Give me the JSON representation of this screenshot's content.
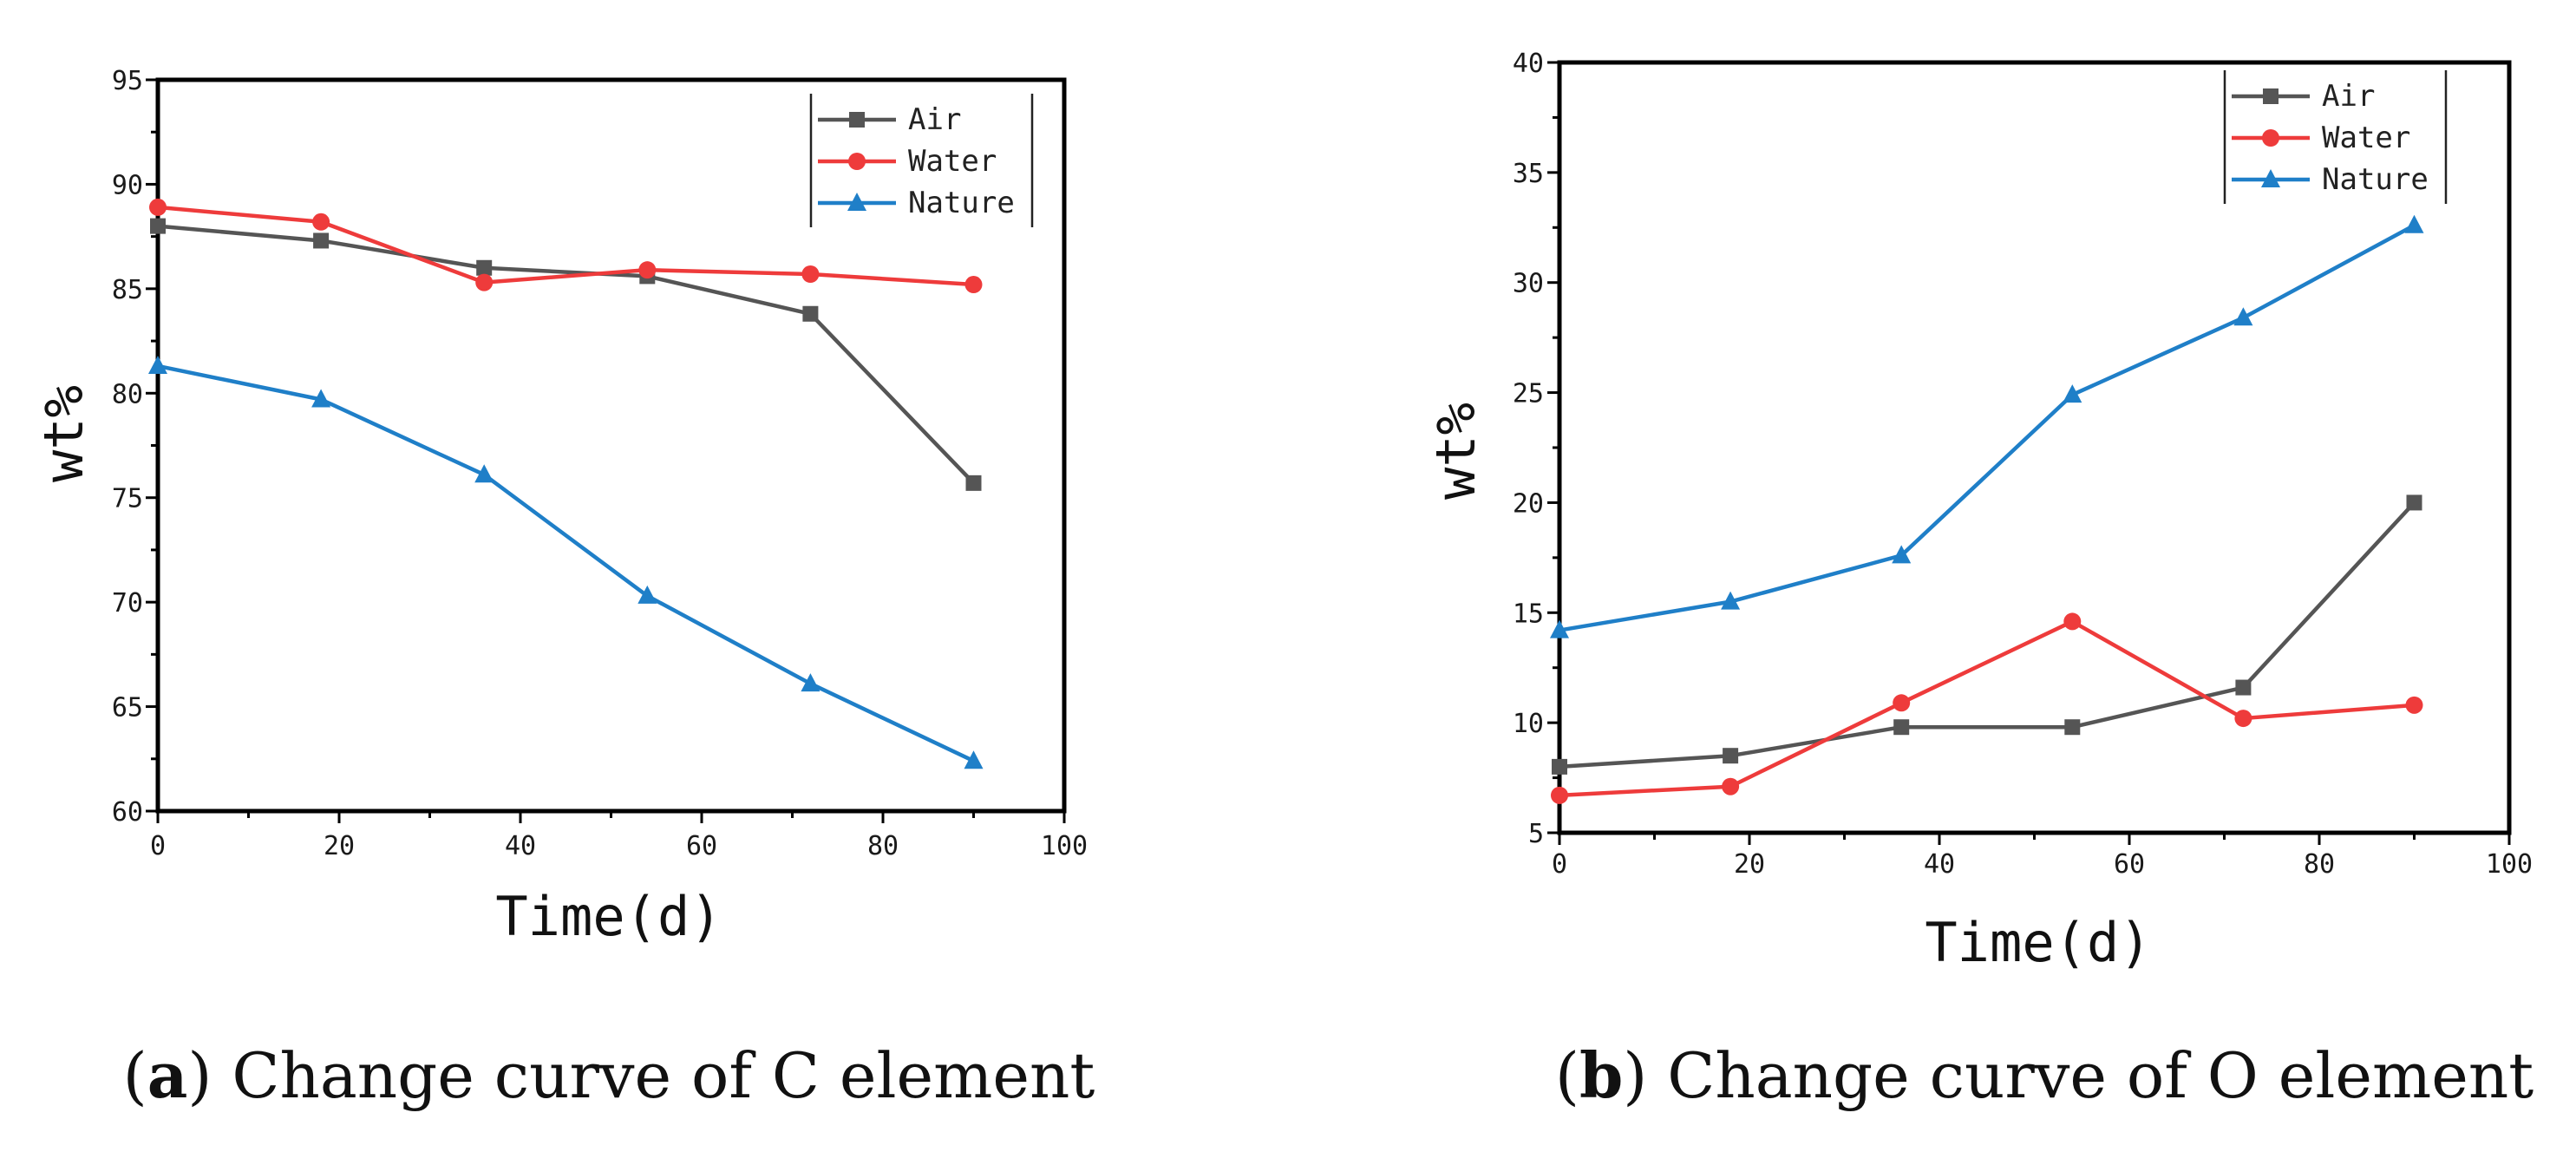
{
  "chart_data": [
    {
      "type": "line",
      "panel": "a",
      "caption_label": "a",
      "caption_text": "Change curve of C element",
      "xlabel": "Time(d)",
      "ylabel": "wt%",
      "xlim": [
        0,
        100
      ],
      "ylim": [
        60,
        95
      ],
      "xticks": [
        "0",
        "20",
        "40",
        "60",
        "80",
        "100"
      ],
      "yticks": [
        "60",
        "65",
        "70",
        "75",
        "80",
        "85",
        "90",
        "95"
      ],
      "x": [
        0,
        18,
        36,
        54,
        72,
        90
      ],
      "legend_position": "top-right",
      "series": [
        {
          "name": "Air",
          "color": "#555555",
          "marker": "square",
          "values": [
            88.0,
            87.3,
            86.0,
            85.6,
            83.8,
            75.7
          ]
        },
        {
          "name": "Water",
          "color": "#ee3b3b",
          "marker": "circle",
          "values": [
            88.9,
            88.2,
            85.3,
            85.9,
            85.7,
            85.2
          ]
        },
        {
          "name": "Nature",
          "color": "#1f7fc8",
          "marker": "triangle",
          "values": [
            81.3,
            79.7,
            76.1,
            70.3,
            66.1,
            62.4
          ]
        }
      ]
    },
    {
      "type": "line",
      "panel": "b",
      "caption_label": "b",
      "caption_text": "Change curve of O element",
      "xlabel": "Time(d)",
      "ylabel": "wt%",
      "xlim": [
        0,
        100
      ],
      "ylim": [
        5,
        40
      ],
      "xticks": [
        "0",
        "20",
        "40",
        "60",
        "80",
        "100"
      ],
      "yticks": [
        "5",
        "10",
        "15",
        "20",
        "25",
        "30",
        "35",
        "40"
      ],
      "x": [
        0,
        18,
        36,
        54,
        72,
        90
      ],
      "legend_position": "top-right",
      "series": [
        {
          "name": "Air",
          "color": "#555555",
          "marker": "square",
          "values": [
            8.0,
            8.5,
            9.8,
            9.8,
            11.6,
            20.0
          ]
        },
        {
          "name": "Water",
          "color": "#ee3b3b",
          "marker": "circle",
          "values": [
            6.7,
            7.1,
            10.9,
            14.6,
            10.2,
            10.8
          ]
        },
        {
          "name": "Nature",
          "color": "#1f7fc8",
          "marker": "triangle",
          "values": [
            14.2,
            15.5,
            17.6,
            24.9,
            28.4,
            32.6
          ]
        }
      ]
    }
  ]
}
